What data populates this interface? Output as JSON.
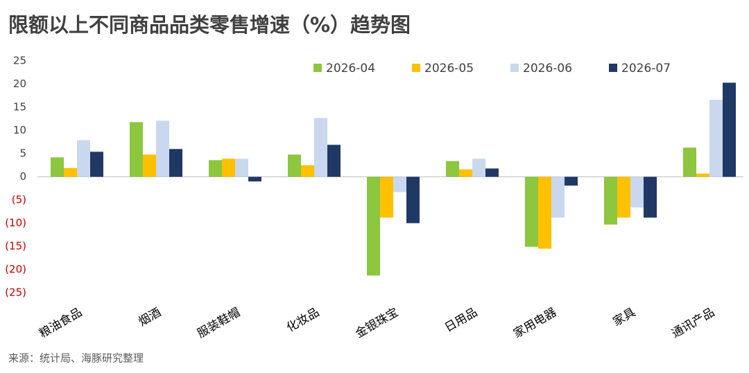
{
  "chart_data": {
    "type": "bar",
    "title": "限额以上不同商品品类零售增速（%）趋势图",
    "source": "来源：统计局、海豚研究整理",
    "categories": [
      "粮油食品",
      "烟酒",
      "服装鞋帽",
      "化妆品",
      "金银珠宝",
      "日用品",
      "家用电器",
      "家具",
      "通讯产品"
    ],
    "series": [
      {
        "name": "2026-04",
        "color": "#8dc63f",
        "values": [
          4.2,
          11.8,
          3.6,
          4.8,
          -21.3,
          3.4,
          -15.1,
          -10.3,
          6.3
        ]
      },
      {
        "name": "2026-05",
        "color": "#ffc000",
        "values": [
          1.9,
          4.8,
          3.9,
          2.5,
          -8.8,
          1.6,
          -15.5,
          -8.8,
          0.7
        ]
      },
      {
        "name": "2026-06",
        "color": "#c9d8ee",
        "values": [
          7.9,
          12.1,
          3.9,
          12.7,
          -3.3,
          3.9,
          -8.8,
          -6.6,
          16.6
        ]
      },
      {
        "name": "2026-07",
        "color": "#203864",
        "values": [
          5.4,
          6.0,
          -1.0,
          6.9,
          -10.0,
          1.8,
          -1.9,
          -8.8,
          20.3
        ]
      }
    ],
    "ylim": [
      -25,
      25
    ],
    "yticks": [
      25,
      20,
      15,
      10,
      5,
      0,
      {
        "value": -5,
        "label": "(5)"
      },
      {
        "value": -10,
        "label": "(10)"
      },
      {
        "value": -15,
        "label": "(15)"
      },
      {
        "value": -20,
        "label": "(20)"
      },
      {
        "value": -25,
        "label": "(25)"
      }
    ],
    "negative_tick_color": "#c00000",
    "legend": "top"
  }
}
